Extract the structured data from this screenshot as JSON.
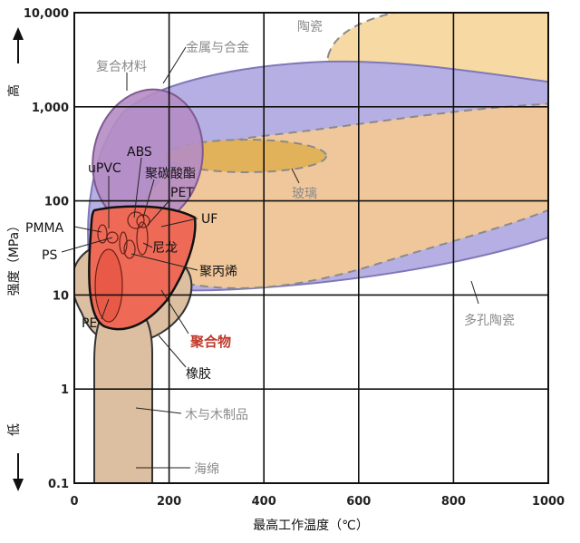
{
  "chart_data": {
    "type": "area",
    "title": "",
    "xlabel": "最高工作温度（℃）",
    "ylabel": "强度（MPa）",
    "ylabel_high": "高",
    "ylabel_low": "低",
    "xlim": [
      0,
      1000
    ],
    "ylim": [
      0.1,
      10000
    ],
    "yscale": "log",
    "grid": true,
    "x_ticks": [
      "0",
      "200",
      "400",
      "600",
      "800",
      "1000"
    ],
    "y_ticks": [
      "0.1",
      "1",
      "10",
      "100",
      "1,000",
      "10,000"
    ],
    "regions": [
      {
        "name": "陶瓷",
        "x_range": [
          520,
          1000
        ],
        "y_range": [
          1000,
          10000
        ],
        "color": "#f6d9a3",
        "border": "dashed"
      },
      {
        "name": "金属与合金",
        "x_range": [
          70,
          1000
        ],
        "y_range": [
          20,
          3000
        ],
        "color": "#b6afe3",
        "border": "solid"
      },
      {
        "name": "多孔陶瓷",
        "x_range": [
          140,
          1000
        ],
        "y_range": [
          10,
          2000
        ],
        "color": "#f0c79a",
        "border": "dashed"
      },
      {
        "name": "玻璃",
        "x_range": [
          140,
          540
        ],
        "y_range": [
          200,
          500
        ],
        "color": "#e2b25a",
        "border": "dashed"
      },
      {
        "name": "复合材料",
        "x_range": [
          45,
          265
        ],
        "y_range": [
          40,
          1500
        ],
        "color": "#b58cc4",
        "border": "solid"
      },
      {
        "name": "聚合物",
        "x_range": [
          40,
          265
        ],
        "y_range": [
          4,
          100
        ],
        "color": "#ee6a57",
        "border": "solid"
      },
      {
        "name": "橡胶",
        "x_range": [
          15,
          255
        ],
        "y_range": [
          3,
          20
        ],
        "color": "#dcbfa0",
        "border": "solid"
      },
      {
        "name": "木与木制品",
        "x_range": [
          50,
          180
        ],
        "y_range": [
          0.1,
          7
        ],
        "color": "#dcbfa0",
        "border": "solid"
      },
      {
        "name": "海绵",
        "x_range": [
          50,
          180
        ],
        "y_range": [
          0.1,
          1
        ],
        "color": "#dcbfa0",
        "border": "solid"
      }
    ],
    "annotations": [
      {
        "text": "ABS",
        "style": "dark"
      },
      {
        "text": "uPVC",
        "style": "dark"
      },
      {
        "text": "聚碳酸酯",
        "style": "dark"
      },
      {
        "text": "PET",
        "style": "dark"
      },
      {
        "text": "UF",
        "style": "dark"
      },
      {
        "text": "PMMA",
        "style": "dark"
      },
      {
        "text": "PS",
        "style": "dark"
      },
      {
        "text": "尼龙",
        "style": "dark"
      },
      {
        "text": "聚丙烯",
        "style": "dark"
      },
      {
        "text": "PE",
        "style": "dark"
      },
      {
        "text": "聚合物",
        "style": "red"
      },
      {
        "text": "橡胶",
        "style": "dark"
      },
      {
        "text": "木与木制品",
        "style": "grey"
      },
      {
        "text": "海绵",
        "style": "grey"
      },
      {
        "text": "复合材料",
        "style": "grey"
      },
      {
        "text": "金属与合金",
        "style": "grey"
      },
      {
        "text": "陶瓷",
        "style": "grey"
      },
      {
        "text": "玻璃",
        "style": "grey"
      },
      {
        "text": "多孔陶瓷",
        "style": "grey"
      }
    ]
  }
}
